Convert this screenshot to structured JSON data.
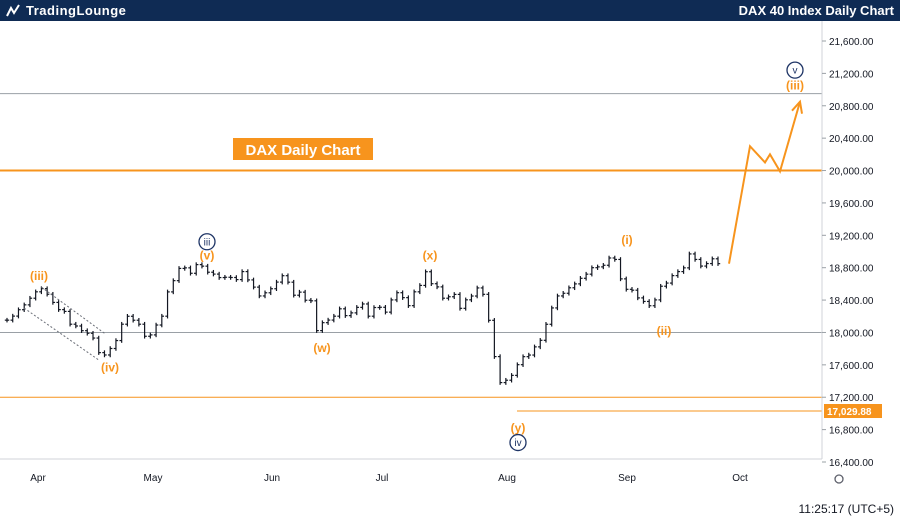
{
  "header": {
    "logo_text": "TradingLounge",
    "title": "DAX 40 Index Daily Chart"
  },
  "footer": {
    "time": "11:25:17 (UTC+5)"
  },
  "colors": {
    "header_bg": "#0f2b54",
    "orange": "#f7941d",
    "navy": "#1f3566",
    "grid": "#9aa0a6",
    "candle": "#131722"
  },
  "chart_data": {
    "type": "ohlc",
    "title": "DAX  Daily Chart",
    "y_axis": {
      "ticks": [
        "21,600.00",
        "21,200.00",
        "20,800.00",
        "20,400.00",
        "20,000.00",
        "19,600.00",
        "19,200.00",
        "18,800.00",
        "18,400.00",
        "18,000.00",
        "17,600.00",
        "17,200.00",
        "16,800.00",
        "16,400.00"
      ],
      "ylim": [
        16400,
        21760
      ]
    },
    "x_axis": {
      "ticks": [
        "Apr",
        "May",
        "Jun",
        "Jul",
        "Aug",
        "Sep",
        "Oct"
      ]
    },
    "levels": [
      {
        "value": 20950,
        "color": "#9aa0a6"
      },
      {
        "value": 20000,
        "color": "#f7941d",
        "label": "20,000.00"
      },
      {
        "value": 18000,
        "color": "#9aa0a6"
      },
      {
        "value": 17200,
        "color": "#f7941d"
      },
      {
        "value": 17029.88,
        "color": "#f7941d",
        "label": "17,029.88"
      }
    ],
    "series": [
      {
        "values": [
          18152,
          18202,
          18281,
          18341,
          18423,
          18502,
          18541,
          18472,
          18371,
          18282,
          18260,
          18102,
          18080,
          18022,
          17990,
          17931,
          17751,
          17722,
          17802,
          17900,
          18102,
          18200,
          18151,
          18102,
          17953,
          17970,
          18092,
          18201,
          18501,
          18640,
          18791,
          18798,
          18731,
          18838,
          18819,
          18744,
          18721,
          18678,
          18682,
          18679,
          18653,
          18752,
          18649,
          18560,
          18451,
          18490,
          18540,
          18622,
          18701,
          18621,
          18460,
          18498,
          18398,
          18391,
          18023,
          18121,
          18153,
          18201,
          18292,
          18208,
          18242,
          18310,
          18352,
          18201,
          18308,
          18311,
          18251,
          18402,
          18491,
          18430,
          18331,
          18502,
          18581,
          18750,
          18602,
          18563,
          18423,
          18441,
          18470,
          18298,
          18403,
          18450,
          18550,
          18471,
          18150,
          17702,
          17381,
          17410,
          17470,
          17602,
          17701,
          17721,
          17822,
          17903,
          18101,
          18303,
          18451,
          18484,
          18552,
          18600,
          18669,
          18720,
          18800,
          18810,
          18830,
          18920,
          18902,
          18662,
          18533,
          18522,
          18427,
          18383,
          18330,
          18402,
          18571,
          18610,
          18702,
          18752,
          18798,
          18970,
          18902,
          18820,
          18851,
          18910,
          18850
        ]
      }
    ],
    "projection": {
      "points": [
        18850,
        20300,
        20100,
        20200,
        19990,
        20850
      ]
    },
    "annotations": [
      {
        "label": "(iii)",
        "price": 18700,
        "color": "#f7941d",
        "style": "text"
      },
      {
        "label": "(iv)",
        "price": 17570,
        "color": "#f7941d",
        "style": "text"
      },
      {
        "label": "iii",
        "price": 19120,
        "color": "#1f3566",
        "style": "circle"
      },
      {
        "label": "(v)",
        "price": 18950,
        "color": "#f7941d",
        "style": "text"
      },
      {
        "label": "(w)",
        "price": 17810,
        "color": "#f7941d",
        "style": "text"
      },
      {
        "label": "(x)",
        "price": 18950,
        "color": "#f7941d",
        "style": "text"
      },
      {
        "label": "(y)",
        "price": 16820,
        "color": "#f7941d",
        "style": "text"
      },
      {
        "label": "iv",
        "price": 16640,
        "color": "#1f3566",
        "style": "circle"
      },
      {
        "label": "(i)",
        "price": 19140,
        "color": "#f7941d",
        "style": "text"
      },
      {
        "label": "(ii)",
        "price": 18020,
        "color": "#f7941d",
        "style": "text"
      },
      {
        "label": "v",
        "price": 21240,
        "color": "#1f3566",
        "style": "circle"
      },
      {
        "label": "(iii)",
        "price": 21050,
        "color": "#f7941d",
        "style": "text"
      }
    ]
  }
}
